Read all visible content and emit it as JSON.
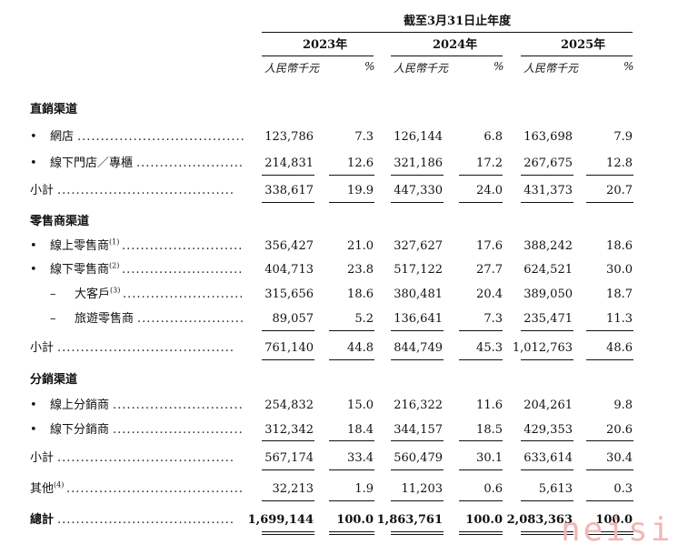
{
  "header": {
    "period": "截至3月31日止年度",
    "years": [
      "2023年",
      "2024年",
      "2025年"
    ],
    "unit_rmb": "人民幣千元",
    "unit_pct": "%"
  },
  "sections": [
    {
      "title": "直銷渠道",
      "rows": [
        {
          "bullet": "•",
          "label": "網店",
          "sup": "",
          "values": [
            "123,786",
            "7.3",
            "126,144",
            "6.8",
            "163,698",
            "7.9"
          ]
        },
        {
          "bullet": "•",
          "label": "線下門店／專櫃",
          "sup": "",
          "values": [
            "214,831",
            "12.6",
            "321,186",
            "17.2",
            "267,675",
            "12.8"
          ]
        }
      ],
      "subtotal": {
        "label": "小計",
        "values": [
          "338,617",
          "19.9",
          "447,330",
          "24.0",
          "431,373",
          "20.7"
        ]
      }
    },
    {
      "title": "零售商渠道",
      "rows": [
        {
          "bullet": "•",
          "label": "線上零售商",
          "sup": "(1)",
          "values": [
            "356,427",
            "21.0",
            "327,627",
            "17.6",
            "388,242",
            "18.6"
          ]
        },
        {
          "bullet": "•",
          "label": "線下零售商",
          "sup": "(2)",
          "values": [
            "404,713",
            "23.8",
            "517,122",
            "27.7",
            "624,521",
            "30.0"
          ]
        },
        {
          "bullet": "–",
          "label": "大客戶",
          "sup": "(3)",
          "values": [
            "315,656",
            "18.6",
            "380,481",
            "20.4",
            "389,050",
            "18.7"
          ]
        },
        {
          "bullet": "–",
          "label": "旅遊零售商",
          "sup": "",
          "values": [
            "89,057",
            "5.2",
            "136,641",
            "7.3",
            "235,471",
            "11.3"
          ]
        }
      ],
      "subtotal": {
        "label": "小計",
        "values": [
          "761,140",
          "44.8",
          "844,749",
          "45.3",
          "1,012,763",
          "48.6"
        ]
      }
    },
    {
      "title": "分銷渠道",
      "rows": [
        {
          "bullet": "•",
          "label": "線上分銷商",
          "sup": "",
          "values": [
            "254,832",
            "15.0",
            "216,322",
            "11.6",
            "204,261",
            "9.8"
          ]
        },
        {
          "bullet": "•",
          "label": "線下分銷商",
          "sup": "",
          "values": [
            "312,342",
            "18.4",
            "344,157",
            "18.5",
            "429,353",
            "20.6"
          ]
        }
      ],
      "subtotal": {
        "label": "小計",
        "values": [
          "567,174",
          "33.4",
          "560,479",
          "30.1",
          "633,614",
          "30.4"
        ]
      }
    }
  ],
  "other": {
    "label": "其他",
    "sup": "(4)",
    "values": [
      "32,213",
      "1.9",
      "11,203",
      "0.6",
      "5,613",
      "0.3"
    ]
  },
  "total": {
    "label": "總計",
    "values": [
      "1,699,144",
      "100.0",
      "1,863,761",
      "100.0",
      "2,083,363",
      "100.0"
    ]
  },
  "watermark": "neisi",
  "dot_leader": "......................................"
}
